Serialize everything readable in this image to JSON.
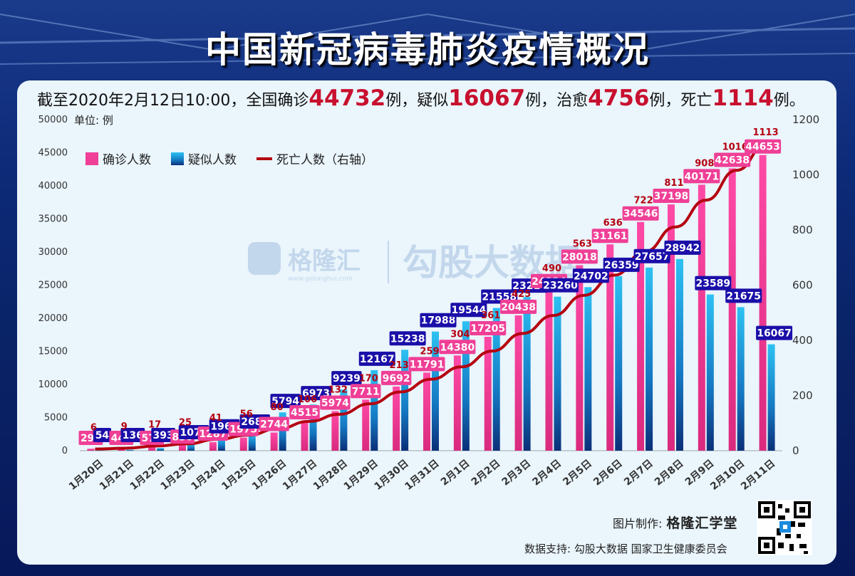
{
  "title": "中国新冠病毒肺炎疫情概况",
  "summary": {
    "prefix": "截至2020年2月12日10:00，全国确诊",
    "confirmed": "44732",
    "t1": "例，疑似",
    "suspected": "16067",
    "t2": "例，治愈",
    "cured": "4756",
    "t3": "例，死亡",
    "deaths": "1114",
    "t4": "例。"
  },
  "credit": {
    "made_label": "图片制作:",
    "made_by": "格隆汇学堂",
    "data_label": "数据支持: 勾股大数据  国家卫生健康委员会"
  },
  "watermark": {
    "logo_text": "格隆汇",
    "url": "www.gelonghui.com",
    "text": "勾股大数据"
  },
  "colors": {
    "confirmed": "#ef3f96",
    "suspected": "#1aa6e6",
    "deaths": "#b5000f",
    "suspected_label_bg": "#1a0fa8"
  },
  "chart_data": {
    "type": "bar",
    "unit": "单位: 例",
    "categories": [
      "1月20日",
      "1月21日",
      "1月22日",
      "1月23日",
      "1月24日",
      "1月25日",
      "1月26日",
      "1月27日",
      "1月28日",
      "1月29日",
      "1月30日",
      "1月31日",
      "2月1日",
      "2月2日",
      "2月3日",
      "2月4日",
      "2月5日",
      "2月6日",
      "2月7日",
      "2月8日",
      "2月9日",
      "2月10日",
      "2月11日"
    ],
    "series": [
      {
        "name": "确诊人数",
        "axis": "left",
        "values": [
          291,
          440,
          571,
          830,
          1287,
          1975,
          2744,
          4515,
          5974,
          7711,
          9692,
          11791,
          14380,
          17205,
          20438,
          24324,
          28018,
          31161,
          34546,
          37198,
          40171,
          42638,
          44653
        ]
      },
      {
        "name": "疑似人数",
        "axis": "left",
        "values": [
          54,
          136,
          393,
          1072,
          1965,
          2684,
          5794,
          6973,
          9239,
          12167,
          15238,
          17988,
          19544,
          21558,
          23214,
          23260,
          24702,
          26359,
          27657,
          28942,
          23589,
          21675,
          16067
        ]
      },
      {
        "name": "死亡人数（右轴）",
        "axis": "right",
        "type": "line",
        "values": [
          6,
          9,
          17,
          25,
          41,
          56,
          80,
          106,
          132,
          170,
          213,
          259,
          304,
          361,
          425,
          490,
          563,
          636,
          722,
          811,
          908,
          1016,
          1113
        ]
      }
    ],
    "ylim_left": [
      0,
      50000
    ],
    "yticks_left": [
      0,
      5000,
      10000,
      15000,
      20000,
      25000,
      30000,
      35000,
      40000,
      45000,
      50000
    ],
    "ylim_right": [
      0,
      1200
    ],
    "yticks_right": [
      0,
      200,
      400,
      600,
      800,
      1000,
      1200
    ],
    "legend": "top-left"
  }
}
